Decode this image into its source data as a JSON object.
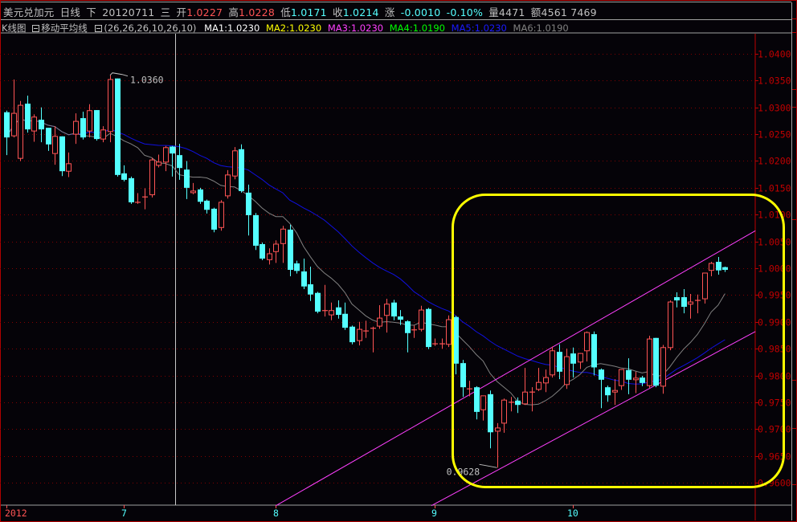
{
  "header": {
    "symbol": "美元兑加元",
    "period": "日线",
    "direction": "下",
    "date": "20120711",
    "weekday": "三",
    "open_label": "开",
    "open": "1.0227",
    "high_label": "高",
    "high": "1.0228",
    "low_label": "低",
    "low": "1.0171",
    "close_label": "收",
    "close": "1.0214",
    "change_label": "涨",
    "change": "-0.0010",
    "change_pct": "-0.10%",
    "volume_label": "量",
    "volume": "4471",
    "amount_label": "额",
    "amount": "4561 7469"
  },
  "indicator_bar": {
    "chart_label": "K线图",
    "indicator_name": "移动平均线",
    "params": "(26,26,26,10,26,10)",
    "ma": [
      {
        "label": "MA1:1.0230",
        "color": "#ffffff"
      },
      {
        "label": "MA2:1.0230",
        "color": "#ffff00"
      },
      {
        "label": "MA3:1.0230",
        "color": "#ff40ff"
      },
      {
        "label": "MA4:1.0190",
        "color": "#00ff00"
      },
      {
        "label": "MA5:1.0230",
        "color": "#1a1aff"
      },
      {
        "label": "MA6:1.0190",
        "color": "#808080"
      }
    ]
  },
  "colors": {
    "up": "#ff5454",
    "down": "#54ffff",
    "grid": "#800000",
    "axis": "#c00000",
    "ma_long": "#1010e0",
    "ma_short": "#808080",
    "trendline": "#ff40ff",
    "highlight": "#ffff00"
  },
  "chart_data": {
    "type": "candlestick",
    "ylim": [
      0.956,
      1.044
    ],
    "y_ticks": [
      "1.0400",
      "1.0350",
      "1.0300",
      "1.0250",
      "1.0200",
      "1.0150",
      "1.0100",
      "1.0050",
      "1.0000",
      "0.9950",
      "0.9900",
      "0.9850",
      "0.9800",
      "0.9750",
      "0.9700",
      "0.9650",
      "0.9600"
    ],
    "x_ticks": [
      {
        "label": "2012",
        "index": 0
      },
      {
        "label": "7",
        "index": 17
      },
      {
        "label": "8",
        "index": 39
      },
      {
        "label": "9",
        "index": 62
      },
      {
        "label": "10",
        "index": 82
      }
    ],
    "grid": true,
    "ma_windows": {
      "long": 26,
      "short": 10
    },
    "cursor_index": 24,
    "candles_ohlc": [
      [
        1.0291,
        1.0294,
        1.0211,
        1.0244
      ],
      [
        1.0247,
        1.0352,
        1.0244,
        1.0289
      ],
      [
        1.0205,
        1.0312,
        1.02,
        1.0304
      ],
      [
        1.0307,
        1.0322,
        1.0253,
        1.0259
      ],
      [
        1.0256,
        1.0287,
        1.0236,
        1.0282
      ],
      [
        1.0277,
        1.03,
        1.0235,
        1.0259
      ],
      [
        1.0262,
        1.0262,
        1.0219,
        1.0231
      ],
      [
        1.0214,
        1.0265,
        1.0193,
        1.0246
      ],
      [
        1.0246,
        1.0246,
        1.0172,
        1.0181
      ],
      [
        1.0181,
        1.0216,
        1.017,
        1.0195
      ],
      [
        1.025,
        1.0289,
        1.0232,
        1.0274
      ],
      [
        1.028,
        1.0292,
        1.024,
        1.0244
      ],
      [
        1.0256,
        1.0306,
        1.0244,
        1.0294
      ],
      [
        1.0295,
        1.0295,
        1.0238,
        1.0241
      ],
      [
        1.0241,
        1.0265,
        1.0235,
        1.0258
      ],
      [
        1.0255,
        1.036,
        1.0235,
        1.0352
      ],
      [
        1.0354,
        1.0354,
        1.0171,
        1.0174
      ],
      [
        1.0177,
        1.0192,
        1.0162,
        1.0165
      ],
      [
        1.0168,
        1.0171,
        1.012,
        1.0123
      ],
      [
        1.0123,
        1.014,
        1.012,
        1.0123
      ],
      [
        1.0131,
        1.0149,
        1.011,
        1.0133
      ],
      [
        1.0137,
        1.0206,
        1.0132,
        1.0202
      ],
      [
        1.0192,
        1.0212,
        1.0188,
        1.0198
      ],
      [
        1.0198,
        1.0228,
        1.0181,
        1.0225
      ],
      [
        1.0227,
        1.0228,
        1.0171,
        1.0214
      ],
      [
        1.0211,
        1.0232,
        1.0165,
        1.0187
      ],
      [
        1.0184,
        1.02,
        1.0129,
        1.015
      ],
      [
        1.0141,
        1.0159,
        1.0138,
        1.0144
      ],
      [
        1.0147,
        1.015,
        1.012,
        1.0124
      ],
      [
        1.0126,
        1.0128,
        1.0102,
        1.0109
      ],
      [
        1.0111,
        1.0113,
        1.0067,
        1.0072
      ],
      [
        1.0076,
        1.0127,
        1.007,
        1.0123
      ],
      [
        1.0135,
        1.0183,
        1.013,
        1.0174
      ],
      [
        1.0172,
        1.0226,
        1.0166,
        1.0219
      ],
      [
        1.0222,
        1.0231,
        1.0141,
        1.0144
      ],
      [
        1.0141,
        1.0156,
        1.0061,
        1.0099
      ],
      [
        1.0099,
        1.0103,
        1.0034,
        1.0042
      ],
      [
        1.0045,
        1.0048,
        1.0015,
        1.0018
      ],
      [
        1.0016,
        1.0037,
        1.0007,
        1.0027
      ],
      [
        1.0031,
        1.0052,
        1.001,
        1.0045
      ],
      [
        1.0046,
        1.0079,
        1.001,
        1.0073
      ],
      [
        1.0072,
        1.0081,
        0.9985,
        0.9997
      ],
      [
        1.0009,
        1.0014,
        0.999,
        0.9995
      ],
      [
        0.9994,
        1.0018,
        0.9961,
        0.9966
      ],
      [
        0.997,
        1.0003,
        0.9939,
        0.9951
      ],
      [
        0.9954,
        0.9956,
        0.9916,
        0.9919
      ],
      [
        0.9921,
        0.9969,
        0.991,
        0.9921
      ],
      [
        0.9913,
        0.9936,
        0.9903,
        0.9921
      ],
      [
        0.9927,
        0.994,
        0.9906,
        0.9913
      ],
      [
        0.9915,
        0.9936,
        0.9885,
        0.9889
      ],
      [
        0.9891,
        0.9893,
        0.9858,
        0.9862
      ],
      [
        0.9865,
        0.99,
        0.9856,
        0.9886
      ],
      [
        0.9883,
        0.9902,
        0.987,
        0.9883
      ],
      [
        0.9888,
        0.9891,
        0.9843,
        0.9888
      ],
      [
        0.9892,
        0.9931,
        0.9887,
        0.9907
      ],
      [
        0.9912,
        0.9943,
        0.988,
        0.9933
      ],
      [
        0.9936,
        0.9941,
        0.9903,
        0.991
      ],
      [
        0.991,
        0.9922,
        0.9894,
        0.9904
      ],
      [
        0.9901,
        0.9903,
        0.9843,
        0.9879
      ],
      [
        0.9883,
        0.9893,
        0.987,
        0.9885
      ],
      [
        0.9886,
        0.993,
        0.9882,
        0.9922
      ],
      [
        0.9924,
        0.9926,
        0.9849,
        0.9853
      ],
      [
        0.9859,
        0.9869,
        0.9855,
        0.9859
      ],
      [
        0.9859,
        0.9869,
        0.985,
        0.9859
      ],
      [
        0.9858,
        0.9912,
        0.9853,
        0.9904
      ],
      [
        0.9909,
        0.9911,
        0.9802,
        0.9822
      ],
      [
        0.9823,
        0.9829,
        0.976,
        0.9778
      ],
      [
        0.9775,
        0.979,
        0.9761,
        0.9775
      ],
      [
        0.9778,
        0.978,
        0.9718,
        0.9732
      ],
      [
        0.9736,
        0.9762,
        0.9716,
        0.9762
      ],
      [
        0.9765,
        0.9772,
        0.9664,
        0.9694
      ],
      [
        0.9696,
        0.9711,
        0.9628,
        0.9702
      ],
      [
        0.9711,
        0.9757,
        0.9693,
        0.9754
      ],
      [
        0.9748,
        0.976,
        0.9733,
        0.975
      ],
      [
        0.9753,
        0.9759,
        0.973,
        0.9745
      ],
      [
        0.9747,
        0.9814,
        0.9745,
        0.9769
      ],
      [
        0.9769,
        0.9778,
        0.9733,
        0.9769
      ],
      [
        0.9774,
        0.9814,
        0.9771,
        0.9787
      ],
      [
        0.9786,
        0.9811,
        0.9769,
        0.9796
      ],
      [
        0.9801,
        0.9854,
        0.9796,
        0.9846
      ],
      [
        0.9844,
        0.9858,
        0.9793,
        0.9807
      ],
      [
        0.9783,
        0.985,
        0.9775,
        0.9835
      ],
      [
        0.9841,
        0.9852,
        0.9796,
        0.9822
      ],
      [
        0.9825,
        0.9842,
        0.9812,
        0.9841
      ],
      [
        0.9846,
        0.9882,
        0.9826,
        0.988
      ],
      [
        0.9877,
        0.9882,
        0.98,
        0.9815
      ],
      [
        0.9811,
        0.9813,
        0.9739,
        0.9792
      ],
      [
        0.9778,
        0.9781,
        0.9751,
        0.9763
      ],
      [
        0.9769,
        0.9793,
        0.9745,
        0.9772
      ],
      [
        0.9781,
        0.9811,
        0.9773,
        0.9811
      ],
      [
        0.981,
        0.9832,
        0.9765,
        0.9792
      ],
      [
        0.9792,
        0.9807,
        0.9767,
        0.9795
      ],
      [
        0.9796,
        0.9799,
        0.978,
        0.9786
      ],
      [
        0.9781,
        0.9874,
        0.9777,
        0.9868
      ],
      [
        0.987,
        0.987,
        0.9778,
        0.9781
      ],
      [
        0.978,
        0.9857,
        0.9766,
        0.9852
      ],
      [
        0.9852,
        0.994,
        0.9847,
        0.9937
      ],
      [
        0.9946,
        0.9955,
        0.9927,
        0.994
      ],
      [
        0.9946,
        0.9961,
        0.9916,
        0.9928
      ],
      [
        0.9933,
        0.9952,
        0.9906,
        0.9937
      ],
      [
        0.994,
        0.9951,
        0.9916,
        0.994
      ],
      [
        0.9943,
        0.9991,
        0.9934,
        0.9991
      ],
      [
        0.9996,
        1.0012,
        0.9985,
        1.0009
      ],
      [
        1.0012,
        1.0021,
        0.9988,
        0.9996
      ],
      [
        1.0002,
        1.0003,
        0.9993,
        0.9997
      ]
    ],
    "trendlines": [
      {
        "from": {
          "index": 39,
          "price": 0.9557
        },
        "to": {
          "index": 108.4,
          "price": 1.007
        }
      },
      {
        "from": {
          "index": 61.5,
          "price": 0.9557
        },
        "to": {
          "index": 108.4,
          "price": 0.9882
        }
      }
    ],
    "annotations": [
      {
        "text": "1.0360",
        "index": 15,
        "price": 1.036,
        "kind": "high"
      },
      {
        "text": "0.9628",
        "index": 71,
        "price": 0.9628,
        "kind": "low"
      }
    ]
  }
}
